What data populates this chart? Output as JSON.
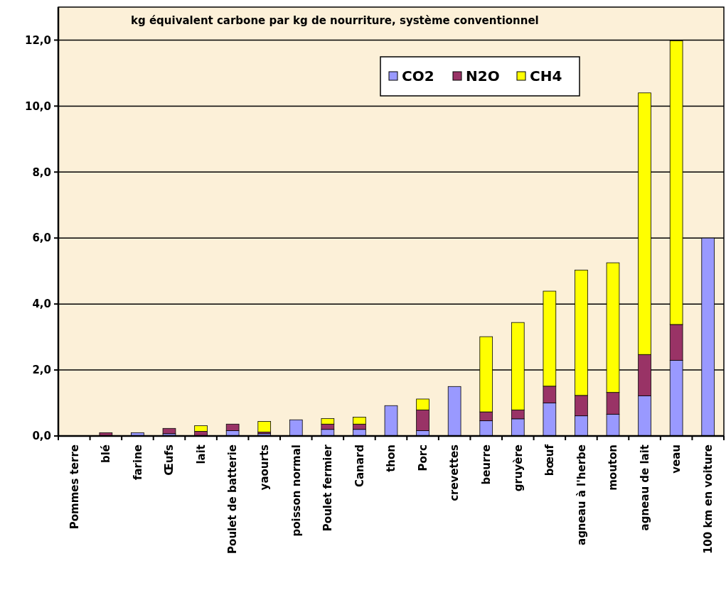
{
  "chart_data": {
    "type": "bar",
    "stacked": true,
    "title": "kg équivalent carbone par kg de nourriture, système conventionnel",
    "categories": [
      "Pommes terre",
      "blé",
      "farine",
      "Œufs",
      "lait",
      "Poulet de batterie",
      "yaourts",
      "poisson normal",
      "Poulet fermier",
      "Canard",
      "thon",
      "Porc",
      "crevettes",
      "beurre",
      "gruyère",
      "bœuf",
      "agneau à l'herbe",
      "mouton",
      "agneau de lait",
      "veau",
      "100 km en voiture"
    ],
    "series": [
      {
        "name": "CO2",
        "color": "#9999ff",
        "values": [
          0,
          null,
          0.1,
          0.07,
          null,
          0.16,
          0.07,
          0.49,
          0.2,
          0.2,
          0.92,
          0.16,
          1.5,
          0.46,
          0.52,
          1.0,
          0.61,
          0.66,
          1.22,
          2.29,
          6.0
        ]
      },
      {
        "name": "N2O",
        "color": "#993366",
        "values": [
          0,
          0.1,
          0,
          0.16,
          0.14,
          0.2,
          0.05,
          0,
          0.16,
          0.16,
          0,
          0.63,
          0,
          0.27,
          0.27,
          0.51,
          0.62,
          0.66,
          1.25,
          1.09,
          0
        ]
      },
      {
        "name": "CH4",
        "color": "#ffff00",
        "values": [
          0,
          0,
          0,
          0,
          0.17,
          0,
          0.32,
          0,
          0.17,
          0.21,
          0,
          0.33,
          0,
          2.28,
          2.65,
          2.88,
          3.8,
          3.93,
          7.93,
          8.6,
          0
        ]
      }
    ],
    "ylim": [
      0,
      13
    ],
    "yticks": [
      {
        "value": 0,
        "label": "0,0"
      },
      {
        "value": 2,
        "label": "2,0"
      },
      {
        "value": 4,
        "label": "4,0"
      },
      {
        "value": 6,
        "label": "6,0"
      },
      {
        "value": 8,
        "label": "8,0"
      },
      {
        "value": 10,
        "label": "10,0"
      },
      {
        "value": 12,
        "label": "12,0"
      }
    ],
    "grid": "y",
    "legend": "top right"
  }
}
